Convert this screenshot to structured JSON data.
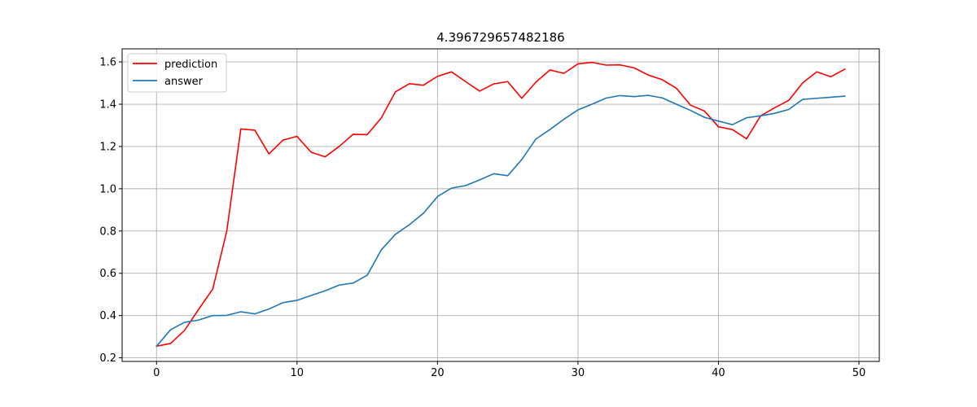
{
  "chart_data": {
    "type": "line",
    "title": "4.396729657482186",
    "xlabel": "",
    "ylabel": "",
    "xlim": [
      -2.45,
      51.45
    ],
    "ylim": [
      0.183,
      1.662
    ],
    "xticks": [
      0,
      10,
      20,
      30,
      40,
      50
    ],
    "xtick_labels": [
      "0",
      "10",
      "20",
      "30",
      "40",
      "50"
    ],
    "yticks": [
      0.2,
      0.4,
      0.6,
      0.8,
      1.0,
      1.2,
      1.4,
      1.6
    ],
    "ytick_labels": [
      "0.2",
      "0.4",
      "0.6",
      "0.8",
      "1.0",
      "1.2",
      "1.4",
      "1.6"
    ],
    "grid": true,
    "legend_position": "upper-left",
    "x": [
      0,
      1,
      2,
      3,
      4,
      5,
      6,
      7,
      8,
      9,
      10,
      11,
      12,
      13,
      14,
      15,
      16,
      17,
      18,
      19,
      20,
      21,
      22,
      23,
      24,
      25,
      26,
      27,
      28,
      29,
      30,
      31,
      32,
      33,
      34,
      35,
      36,
      37,
      38,
      39,
      40,
      41,
      42,
      43,
      44,
      45,
      46,
      47,
      48,
      49
    ],
    "series": [
      {
        "name": "prediction",
        "color": "#ff0000",
        "values": [
          0.255,
          0.268,
          0.33,
          0.43,
          0.525,
          0.8,
          1.283,
          1.277,
          1.165,
          1.23,
          1.248,
          1.173,
          1.151,
          1.2,
          1.258,
          1.256,
          1.335,
          1.458,
          1.497,
          1.49,
          1.532,
          1.553,
          1.507,
          1.462,
          1.496,
          1.507,
          1.428,
          1.504,
          1.562,
          1.546,
          1.591,
          1.598,
          1.585,
          1.586,
          1.572,
          1.538,
          1.516,
          1.476,
          1.396,
          1.368,
          1.293,
          1.28,
          1.236,
          1.345,
          1.383,
          1.418,
          1.501,
          1.553,
          1.53,
          1.566
        ]
      },
      {
        "name": "answer",
        "color": "#1f77b4",
        "values": [
          0.255,
          0.333,
          0.368,
          0.379,
          0.4,
          0.401,
          0.418,
          0.408,
          0.431,
          0.461,
          0.472,
          0.495,
          0.517,
          0.544,
          0.554,
          0.591,
          0.711,
          0.784,
          0.83,
          0.884,
          0.963,
          1.003,
          1.015,
          1.042,
          1.071,
          1.062,
          1.138,
          1.235,
          1.28,
          1.329,
          1.373,
          1.4,
          1.429,
          1.441,
          1.436,
          1.442,
          1.43,
          1.4,
          1.371,
          1.338,
          1.32,
          1.303,
          1.336,
          1.345,
          1.357,
          1.375,
          1.423,
          1.428,
          1.433,
          1.438
        ]
      }
    ]
  }
}
